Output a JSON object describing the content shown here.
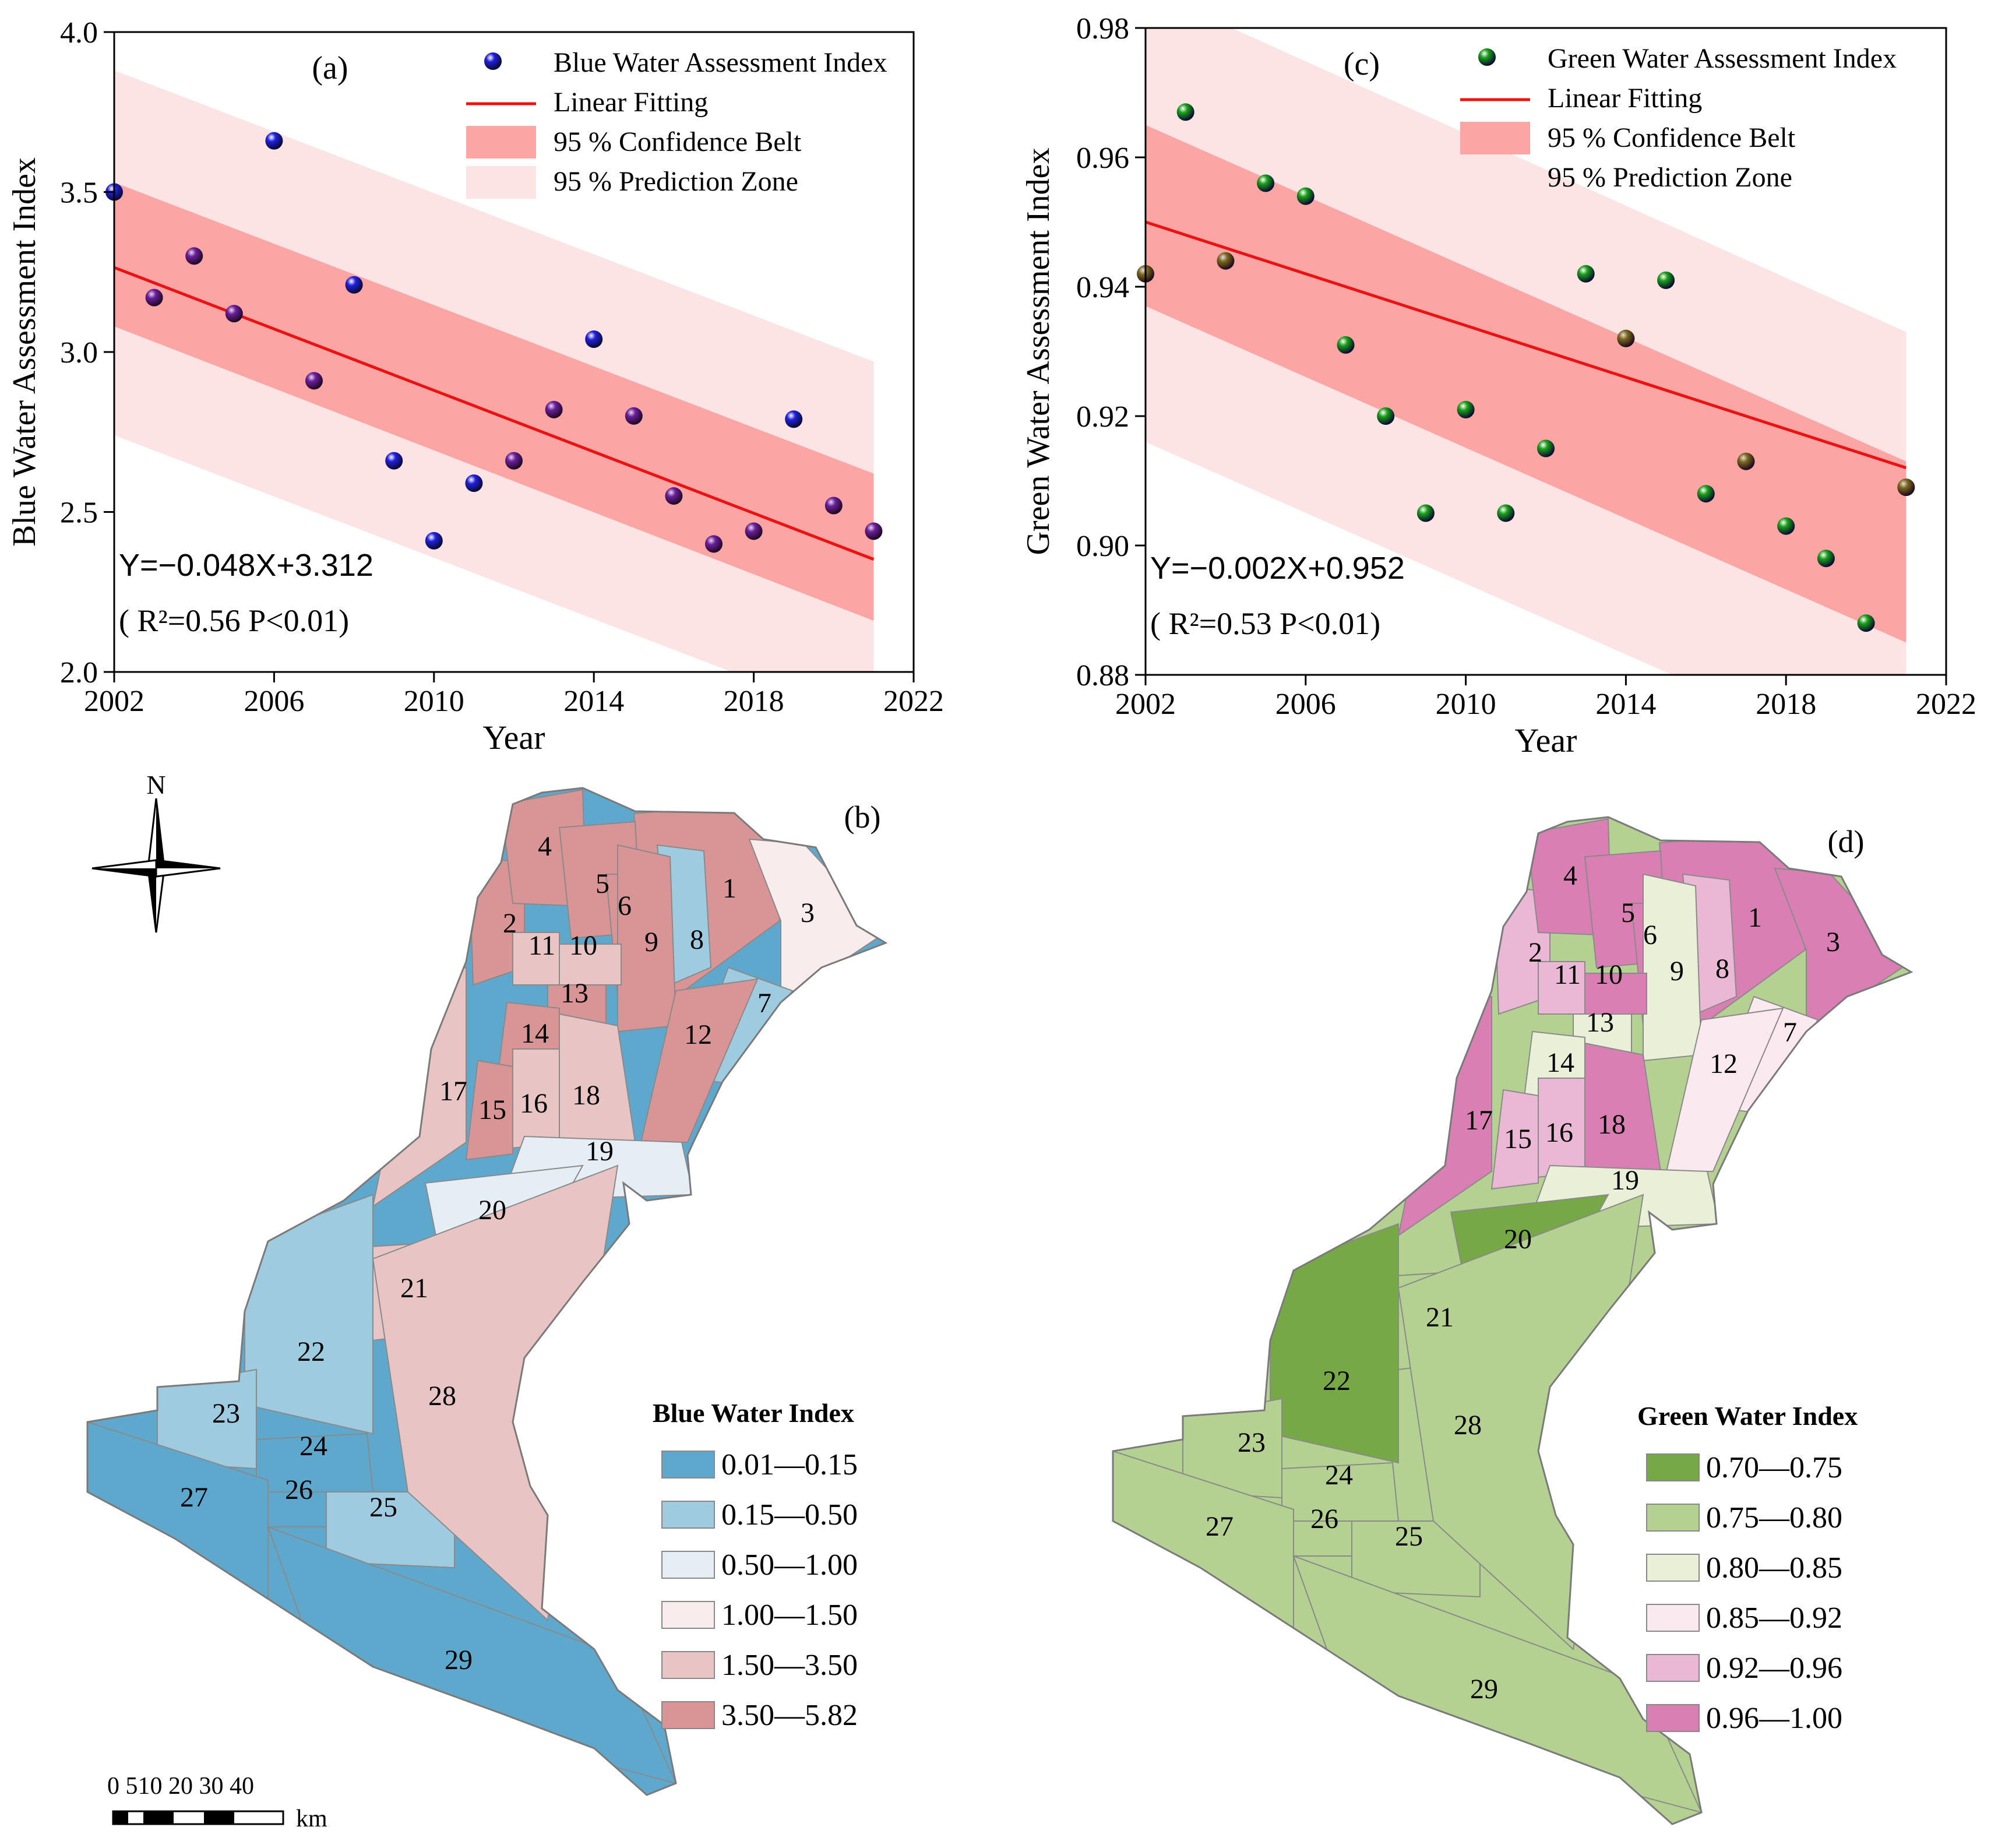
{
  "chart_data": [
    {
      "id": "a",
      "type": "scatter",
      "panel_label": "(a)",
      "xlabel": "Year",
      "ylabel": "Blue Water Assessment Index",
      "xlim": [
        2002,
        2022
      ],
      "ylim": [
        2.0,
        4.0
      ],
      "xticks": [
        "2002",
        "2006",
        "2010",
        "2014",
        "2018",
        "2022"
      ],
      "yticks": [
        "2.0",
        "2.5",
        "3.0",
        "3.5",
        "4.0"
      ],
      "x": [
        2002,
        2003,
        2004,
        2005,
        2006,
        2007,
        2008,
        2009,
        2010,
        2011,
        2012,
        2013,
        2014,
        2015,
        2016,
        2017,
        2018,
        2019,
        2020,
        2021
      ],
      "values": [
        3.5,
        3.17,
        3.3,
        3.12,
        3.66,
        2.91,
        3.21,
        2.66,
        2.41,
        2.59,
        2.66,
        2.82,
        3.04,
        2.8,
        2.55,
        2.4,
        2.44,
        2.79,
        2.52,
        2.44
      ],
      "fit": {
        "slope": -0.048,
        "intercept": 3.312
      },
      "confidence_belt": {
        "start": [
          3.08,
          3.53
        ],
        "end": [
          2.16,
          2.62
        ]
      },
      "prediction_zone": {
        "start": [
          2.74,
          3.88
        ],
        "end": [
          1.83,
          2.97
        ]
      },
      "legend": [
        "Blue Water Assessment Index",
        "Linear Fitting",
        "95 % Confidence Belt",
        "95 % Prediction Zone"
      ],
      "equation": "Y=−0.048X+3.312",
      "stats": "( R²=0.56  P<0.01)",
      "colors": {
        "point": "#1f1fe0",
        "point_alt": "#6a1f9c",
        "fit": "#ee1111",
        "belt": "#fca5a5",
        "zone": "#fde4e4"
      }
    },
    {
      "id": "c",
      "type": "scatter",
      "panel_label": "(c)",
      "xlabel": "Year",
      "ylabel": "Green Water Assessment Index",
      "xlim": [
        2002,
        2022
      ],
      "ylim": [
        0.88,
        0.98
      ],
      "xticks": [
        "2002",
        "2006",
        "2010",
        "2014",
        "2018",
        "2022"
      ],
      "yticks": [
        "0.88",
        "0.90",
        "0.92",
        "0.94",
        "0.96",
        "0.98"
      ],
      "x": [
        2002,
        2003,
        2004,
        2005,
        2006,
        2007,
        2008,
        2009,
        2010,
        2011,
        2012,
        2013,
        2014,
        2015,
        2016,
        2017,
        2018,
        2019,
        2020,
        2021
      ],
      "values": [
        0.942,
        0.967,
        0.944,
        0.956,
        0.954,
        0.931,
        0.92,
        0.905,
        0.921,
        0.905,
        0.915,
        0.942,
        0.932,
        0.941,
        0.908,
        0.913,
        0.903,
        0.898,
        0.888,
        0.909
      ],
      "fit": {
        "slope": -0.002,
        "intercept": 0.952
      },
      "confidence_belt": {
        "start": [
          0.937,
          0.965
        ],
        "end": [
          0.885,
          0.913
        ]
      },
      "prediction_zone": {
        "start": [
          0.916,
          0.986
        ],
        "end": [
          0.864,
          0.933
        ]
      },
      "legend": [
        "Green Water Assessment Index",
        "Linear Fitting",
        "95 % Confidence Belt",
        "95 % Prediction Zone"
      ],
      "equation": "Y=−0.002X+0.952",
      "stats": "( R²=0.53  P<0.01)",
      "colors": {
        "point": "#1aa01a",
        "point_alt": "#7a6a1a",
        "fit": "#ee1111",
        "belt": "#fca5a5",
        "zone": "#fde4e4"
      }
    }
  ],
  "maps": {
    "b": {
      "panel_label": "(b)",
      "legend_title": "Blue Water Index",
      "legend": [
        {
          "label": "0.01—0.15",
          "color": "#5ea8ce"
        },
        {
          "label": "0.15—0.50",
          "color": "#9fcbe0"
        },
        {
          "label": "0.50—1.00",
          "color": "#e6eef5"
        },
        {
          "label": "1.00—1.50",
          "color": "#f8ecec"
        },
        {
          "label": "1.50—3.50",
          "color": "#e8c4c4"
        },
        {
          "label": "3.50—5.82",
          "color": "#d99595"
        }
      ],
      "north": "N",
      "scale_numbers": "0 510 20 30 40",
      "scale_unit": "km"
    },
    "d": {
      "panel_label": "(d)",
      "legend_title": "Green Water Index",
      "legend": [
        {
          "label": "0.70—0.75",
          "color": "#76a846"
        },
        {
          "label": "0.75—0.80",
          "color": "#b5d192"
        },
        {
          "label": "0.80—0.85",
          "color": "#e9f0d7"
        },
        {
          "label": "0.85—0.92",
          "color": "#faeaf0"
        },
        {
          "label": "0.92—0.96",
          "color": "#eab8d4"
        },
        {
          "label": "0.96—1.00",
          "color": "#d97fb3"
        }
      ]
    }
  },
  "subbasin_labels": [
    "1",
    "2",
    "3",
    "4",
    "5",
    "6",
    "7",
    "8",
    "9",
    "10",
    "11",
    "12",
    "13",
    "14",
    "15",
    "16",
    "17",
    "18",
    "19",
    "20",
    "21",
    "22",
    "23",
    "24",
    "25",
    "26",
    "27",
    "28",
    "29"
  ],
  "map_b_classes": [
    "3.50—5.82",
    "3.50—5.82",
    "1.00—1.50",
    "3.50—5.82",
    "3.50—5.82",
    "3.50—5.82",
    "0.15—0.50",
    "0.15—0.50",
    "3.50—5.82",
    "1.50—3.50",
    "1.50—3.50",
    "3.50—5.82",
    "3.50—5.82",
    "3.50—5.82",
    "3.50—5.82",
    "1.50—3.50",
    "1.50—3.50",
    "1.50—3.50",
    "0.50—1.00",
    "0.50—1.00",
    "1.50—3.50",
    "0.15—0.50",
    "0.15—0.50",
    "0.01—0.15",
    "0.15—0.50",
    "0.01—0.15",
    "0.01—0.15",
    "1.50—3.50",
    "0.01—0.15"
  ],
  "map_d_classes": [
    "0.96—1.00",
    "0.92—0.96",
    "0.96—1.00",
    "0.96—1.00",
    "0.96—1.00",
    "0.96—1.00",
    "0.85—0.92",
    "0.92—0.96",
    "0.80—0.85",
    "0.96—1.00",
    "0.92—0.96",
    "0.85—0.92",
    "0.80—0.85",
    "0.80—0.85",
    "0.92—0.96",
    "0.92—0.96",
    "0.96—1.00",
    "0.96—1.00",
    "0.80—0.85",
    "0.70—0.75",
    "0.75—0.80",
    "0.70—0.75",
    "0.75—0.80",
    "0.75—0.80",
    "0.75—0.80",
    "0.75—0.80",
    "0.75—0.80",
    "0.75—0.80",
    "0.75—0.80"
  ]
}
